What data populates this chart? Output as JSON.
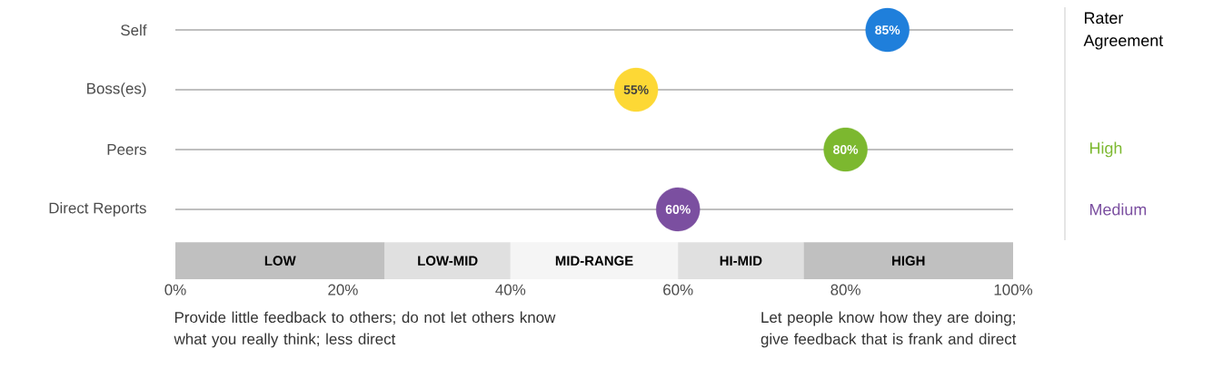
{
  "chart_data": {
    "type": "scatter",
    "categories": [
      "Self",
      "Boss(es)",
      "Peers",
      "Direct Reports"
    ],
    "values": [
      85,
      55,
      80,
      60
    ],
    "colors": [
      "#1f7fdb",
      "#fdd835",
      "#7cb82f",
      "#7b4fa0"
    ],
    "value_labels": [
      "85%",
      "55%",
      "80%",
      "60%"
    ],
    "xlim": [
      0,
      100
    ],
    "xticks": [
      {
        "value": 0,
        "label": "0%"
      },
      {
        "value": 20,
        "label": "20%"
      },
      {
        "value": 40,
        "label": "40%"
      },
      {
        "value": 60,
        "label": "60%"
      },
      {
        "value": 80,
        "label": "80%"
      },
      {
        "value": 100,
        "label": "100%"
      }
    ],
    "bands": [
      {
        "axis": "x",
        "from": 0,
        "to": 25,
        "label": "LOW",
        "color": "#c0c0c0"
      },
      {
        "axis": "x",
        "from": 25,
        "to": 40,
        "label": "LOW-MID",
        "color": "#e0e0e0"
      },
      {
        "axis": "x",
        "from": 40,
        "to": 60,
        "label": "MID-RANGE",
        "color": "#f5f5f5"
      },
      {
        "axis": "x",
        "from": 60,
        "to": 75,
        "label": "HI-MID",
        "color": "#e0e0e0"
      },
      {
        "axis": "x",
        "from": 75,
        "to": 100,
        "label": "HIGH",
        "color": "#c0c0c0"
      }
    ],
    "grid": "y",
    "marker": "circle",
    "orientation": "horizontal",
    "annotations": [
      "Rater Agreement",
      "High",
      "Medium",
      "Provide little feedback to others; do not let others know what you really think; less direct",
      "Let people know how they are doing; give feedback that is frank and direct"
    ]
  }
}
